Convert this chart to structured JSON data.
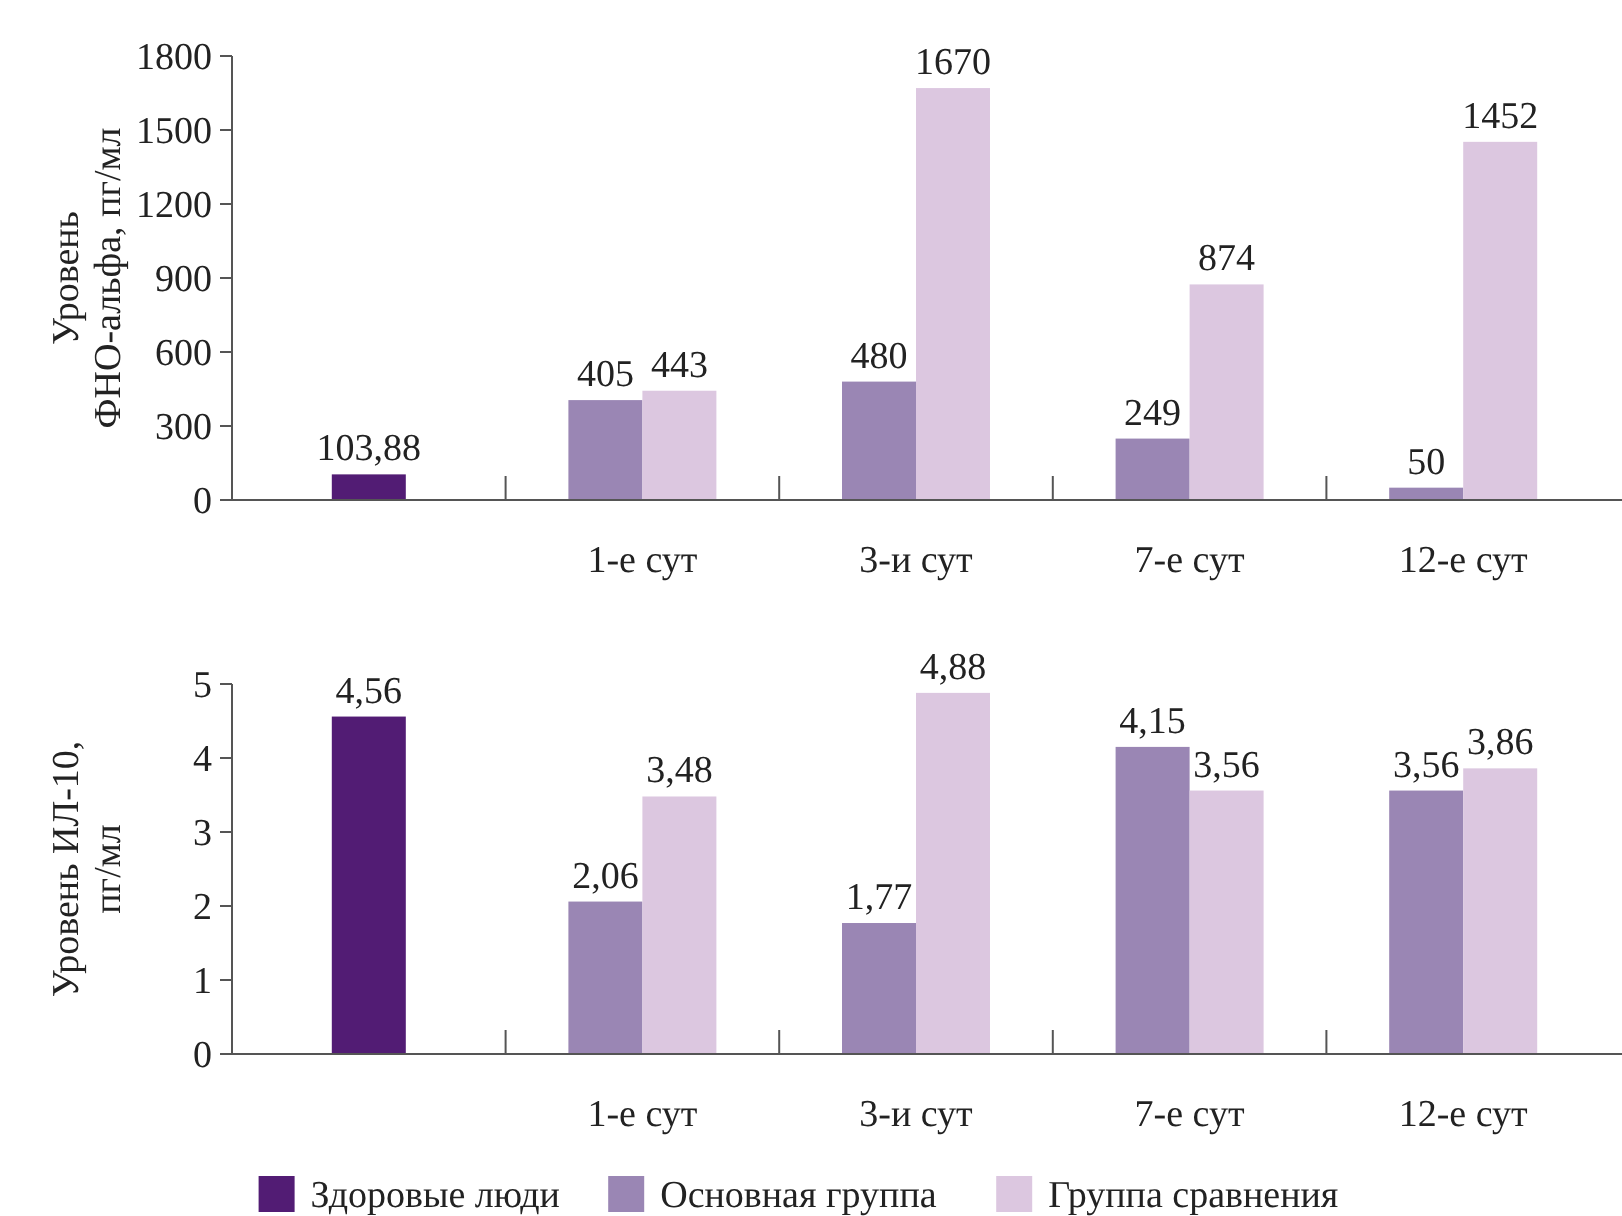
{
  "chart_data": [
    {
      "type": "bar",
      "ylabel": "Уровень\nФНО-альфа, пг/мл",
      "categories": [
        null,
        "1-е сут",
        "3-и сут",
        "7-е сут",
        "12-е сут"
      ],
      "series": [
        {
          "color": "#521c74",
          "values": [
            103.88,
            null,
            null,
            null,
            null
          ],
          "value_labels": [
            "103,88",
            null,
            null,
            null,
            null
          ]
        },
        {
          "color": "#9a86b4",
          "values": [
            null,
            405,
            480,
            249,
            50
          ],
          "value_labels": [
            null,
            "405",
            "480",
            "249",
            "50"
          ]
        },
        {
          "color": "#dcc7e0",
          "values": [
            null,
            443,
            1670,
            874,
            1452
          ],
          "value_labels": [
            null,
            "443",
            "1670",
            "874",
            "1452"
          ]
        }
      ],
      "ylim": [
        0,
        1800
      ],
      "yticks": [
        0,
        300,
        600,
        900,
        1200,
        1500,
        1800
      ],
      "grid": false
    },
    {
      "type": "bar",
      "ylabel": "Уровень ИЛ-10,\nпг/мл",
      "categories": [
        null,
        "1-е сут",
        "3-и сут",
        "7-е сут",
        "12-е сут"
      ],
      "series": [
        {
          "name": "Здоровые люди",
          "color": "#521c74",
          "values": [
            4.56,
            null,
            null,
            null,
            null
          ],
          "value_labels": [
            "4,56",
            null,
            null,
            null,
            null
          ]
        },
        {
          "name": "Основная группа",
          "color": "#9a86b4",
          "values": [
            null,
            2.06,
            1.77,
            4.15,
            3.56
          ],
          "value_labels": [
            null,
            "2,06",
            "1,77",
            "4,15",
            "3,56"
          ]
        },
        {
          "name": "Группа сравнения",
          "color": "#dcc7e0",
          "values": [
            null,
            3.48,
            4.88,
            3.56,
            3.86
          ],
          "value_labels": [
            null,
            "3,48",
            "4,88",
            "3,56",
            "3,86"
          ]
        }
      ],
      "ylim": [
        0,
        5
      ],
      "yticks": [
        0,
        1,
        2,
        3,
        4,
        5
      ],
      "grid": false,
      "legend": "bottom"
    }
  ]
}
